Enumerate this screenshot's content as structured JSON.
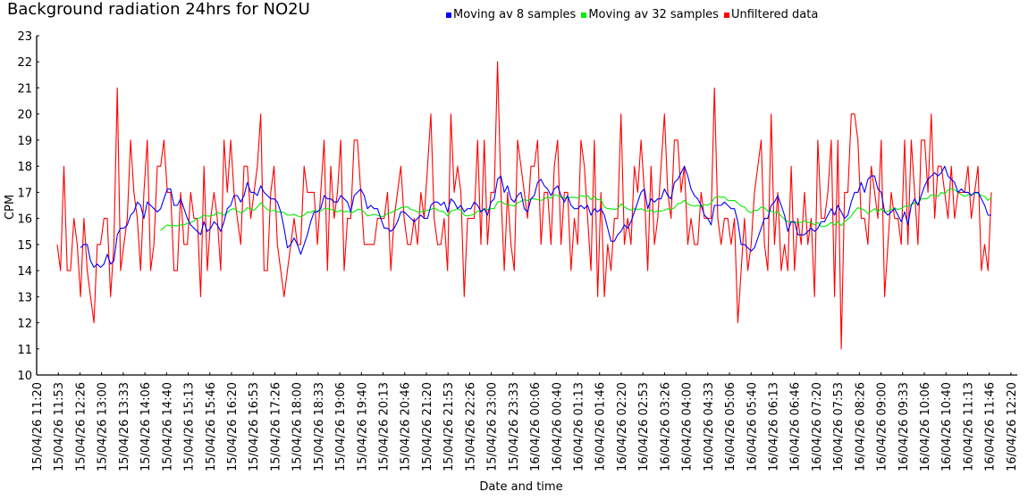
{
  "chart_data": {
    "type": "line",
    "title": "Background radiation 24hrs for NO2U",
    "xlabel": "Date and time",
    "ylabel": "CPM",
    "ylim": [
      10,
      23
    ],
    "yticks": [
      10,
      11,
      12,
      13,
      14,
      15,
      16,
      17,
      18,
      19,
      20,
      21,
      22,
      23
    ],
    "xticks": [
      "15/04/26 11:20",
      "15/04/26 11:53",
      "15/04/26 12:26",
      "15/04/26 13:00",
      "15/04/26 13:33",
      "15/04/26 14:06",
      "15/04/26 14:40",
      "15/04/26 15:13",
      "15/04/26 15:46",
      "15/04/26 16:20",
      "15/04/26 16:53",
      "15/04/26 17:26",
      "15/04/26 18:00",
      "15/04/26 18:33",
      "15/04/26 19:06",
      "15/04/26 19:40",
      "15/04/26 20:13",
      "15/04/26 20:46",
      "15/04/26 21:20",
      "15/04/26 21:53",
      "15/04/26 22:26",
      "15/04/26 23:00",
      "15/04/26 23:33",
      "16/04/26 00:06",
      "16/04/26 00:40",
      "16/04/26 01:13",
      "16/04/26 01:46",
      "16/04/26 02:20",
      "16/04/26 02:53",
      "16/04/26 03:26",
      "16/04/26 04:00",
      "16/04/26 04:33",
      "16/04/26 05:06",
      "16/04/26 05:40",
      "16/04/26 06:13",
      "16/04/26 06:46",
      "16/04/26 07:20",
      "16/04/26 07:53",
      "16/04/26 08:26",
      "16/04/26 09:00",
      "16/04/26 09:33",
      "16/04/26 10:06",
      "16/04/26 10:40",
      "16/04/26 11:13",
      "16/04/26 11:46",
      "16/04/26 12:20"
    ],
    "grid": false,
    "legend_position": "top-right",
    "series": [
      {
        "name": "Moving av 8 samples",
        "color": "#0000ff",
        "moving_average_window": 8
      },
      {
        "name": "Moving av 32 samples",
        "color": "#00ee00",
        "moving_average_window": 32
      },
      {
        "name": "Unfiltered data",
        "color": "#ff0000",
        "values": [
          15,
          14,
          18,
          14,
          14,
          16,
          15,
          13,
          16,
          14,
          13,
          12,
          15,
          15,
          16,
          16,
          13,
          15,
          21,
          14,
          15,
          16,
          19,
          17,
          16,
          14,
          17,
          19,
          14,
          15,
          18,
          18,
          19,
          17,
          17,
          14,
          14,
          17,
          15,
          15,
          17,
          16,
          16,
          13,
          18,
          14,
          16,
          17,
          16,
          14,
          19,
          17,
          19,
          17,
          16,
          15,
          18,
          18,
          16,
          17,
          18,
          20,
          14,
          14,
          17,
          18,
          15,
          14,
          13,
          14,
          15,
          16,
          15,
          15,
          18,
          17,
          17,
          17,
          15,
          17,
          19,
          14,
          18,
          16,
          17,
          19,
          14,
          16,
          16,
          19,
          19,
          17,
          15,
          15,
          15,
          15,
          16,
          16,
          16,
          17,
          14,
          16,
          17,
          18,
          16,
          15,
          15,
          16,
          15,
          17,
          16,
          18,
          20,
          16,
          15,
          15,
          16,
          14,
          20,
          17,
          18,
          17,
          13,
          16,
          16,
          16,
          19,
          15,
          19,
          15,
          17,
          17,
          22,
          17,
          14,
          17,
          15,
          14,
          19,
          18,
          17,
          16,
          18,
          18,
          19,
          15,
          17,
          17,
          15,
          18,
          19,
          15,
          17,
          17,
          14,
          16,
          15,
          19,
          18,
          16,
          14,
          19,
          13,
          17,
          13,
          15,
          14,
          16,
          16,
          20,
          15,
          16,
          15,
          18,
          17,
          19,
          17,
          14,
          18,
          15,
          16,
          18,
          20,
          17,
          16,
          19,
          19,
          17,
          18,
          15,
          16,
          15,
          15,
          17,
          16,
          16,
          16,
          21,
          16,
          15,
          16,
          16,
          15,
          16,
          12,
          14,
          16,
          14,
          15,
          17,
          18,
          19,
          15,
          14,
          20,
          15,
          17,
          14,
          15,
          14,
          18,
          14,
          16,
          15,
          17,
          15,
          16,
          13,
          19,
          16,
          16,
          17,
          19,
          13,
          19,
          11,
          17,
          17,
          20,
          20,
          19,
          16,
          16,
          15,
          18,
          17,
          16,
          19,
          13,
          15,
          17,
          16,
          16,
          15,
          19,
          15,
          19,
          17,
          15,
          19,
          19,
          17,
          20,
          16,
          18,
          18,
          17,
          16,
          18,
          16,
          17,
          17,
          17,
          18,
          16,
          17,
          18,
          14,
          15,
          14,
          17
        ]
      }
    ]
  }
}
